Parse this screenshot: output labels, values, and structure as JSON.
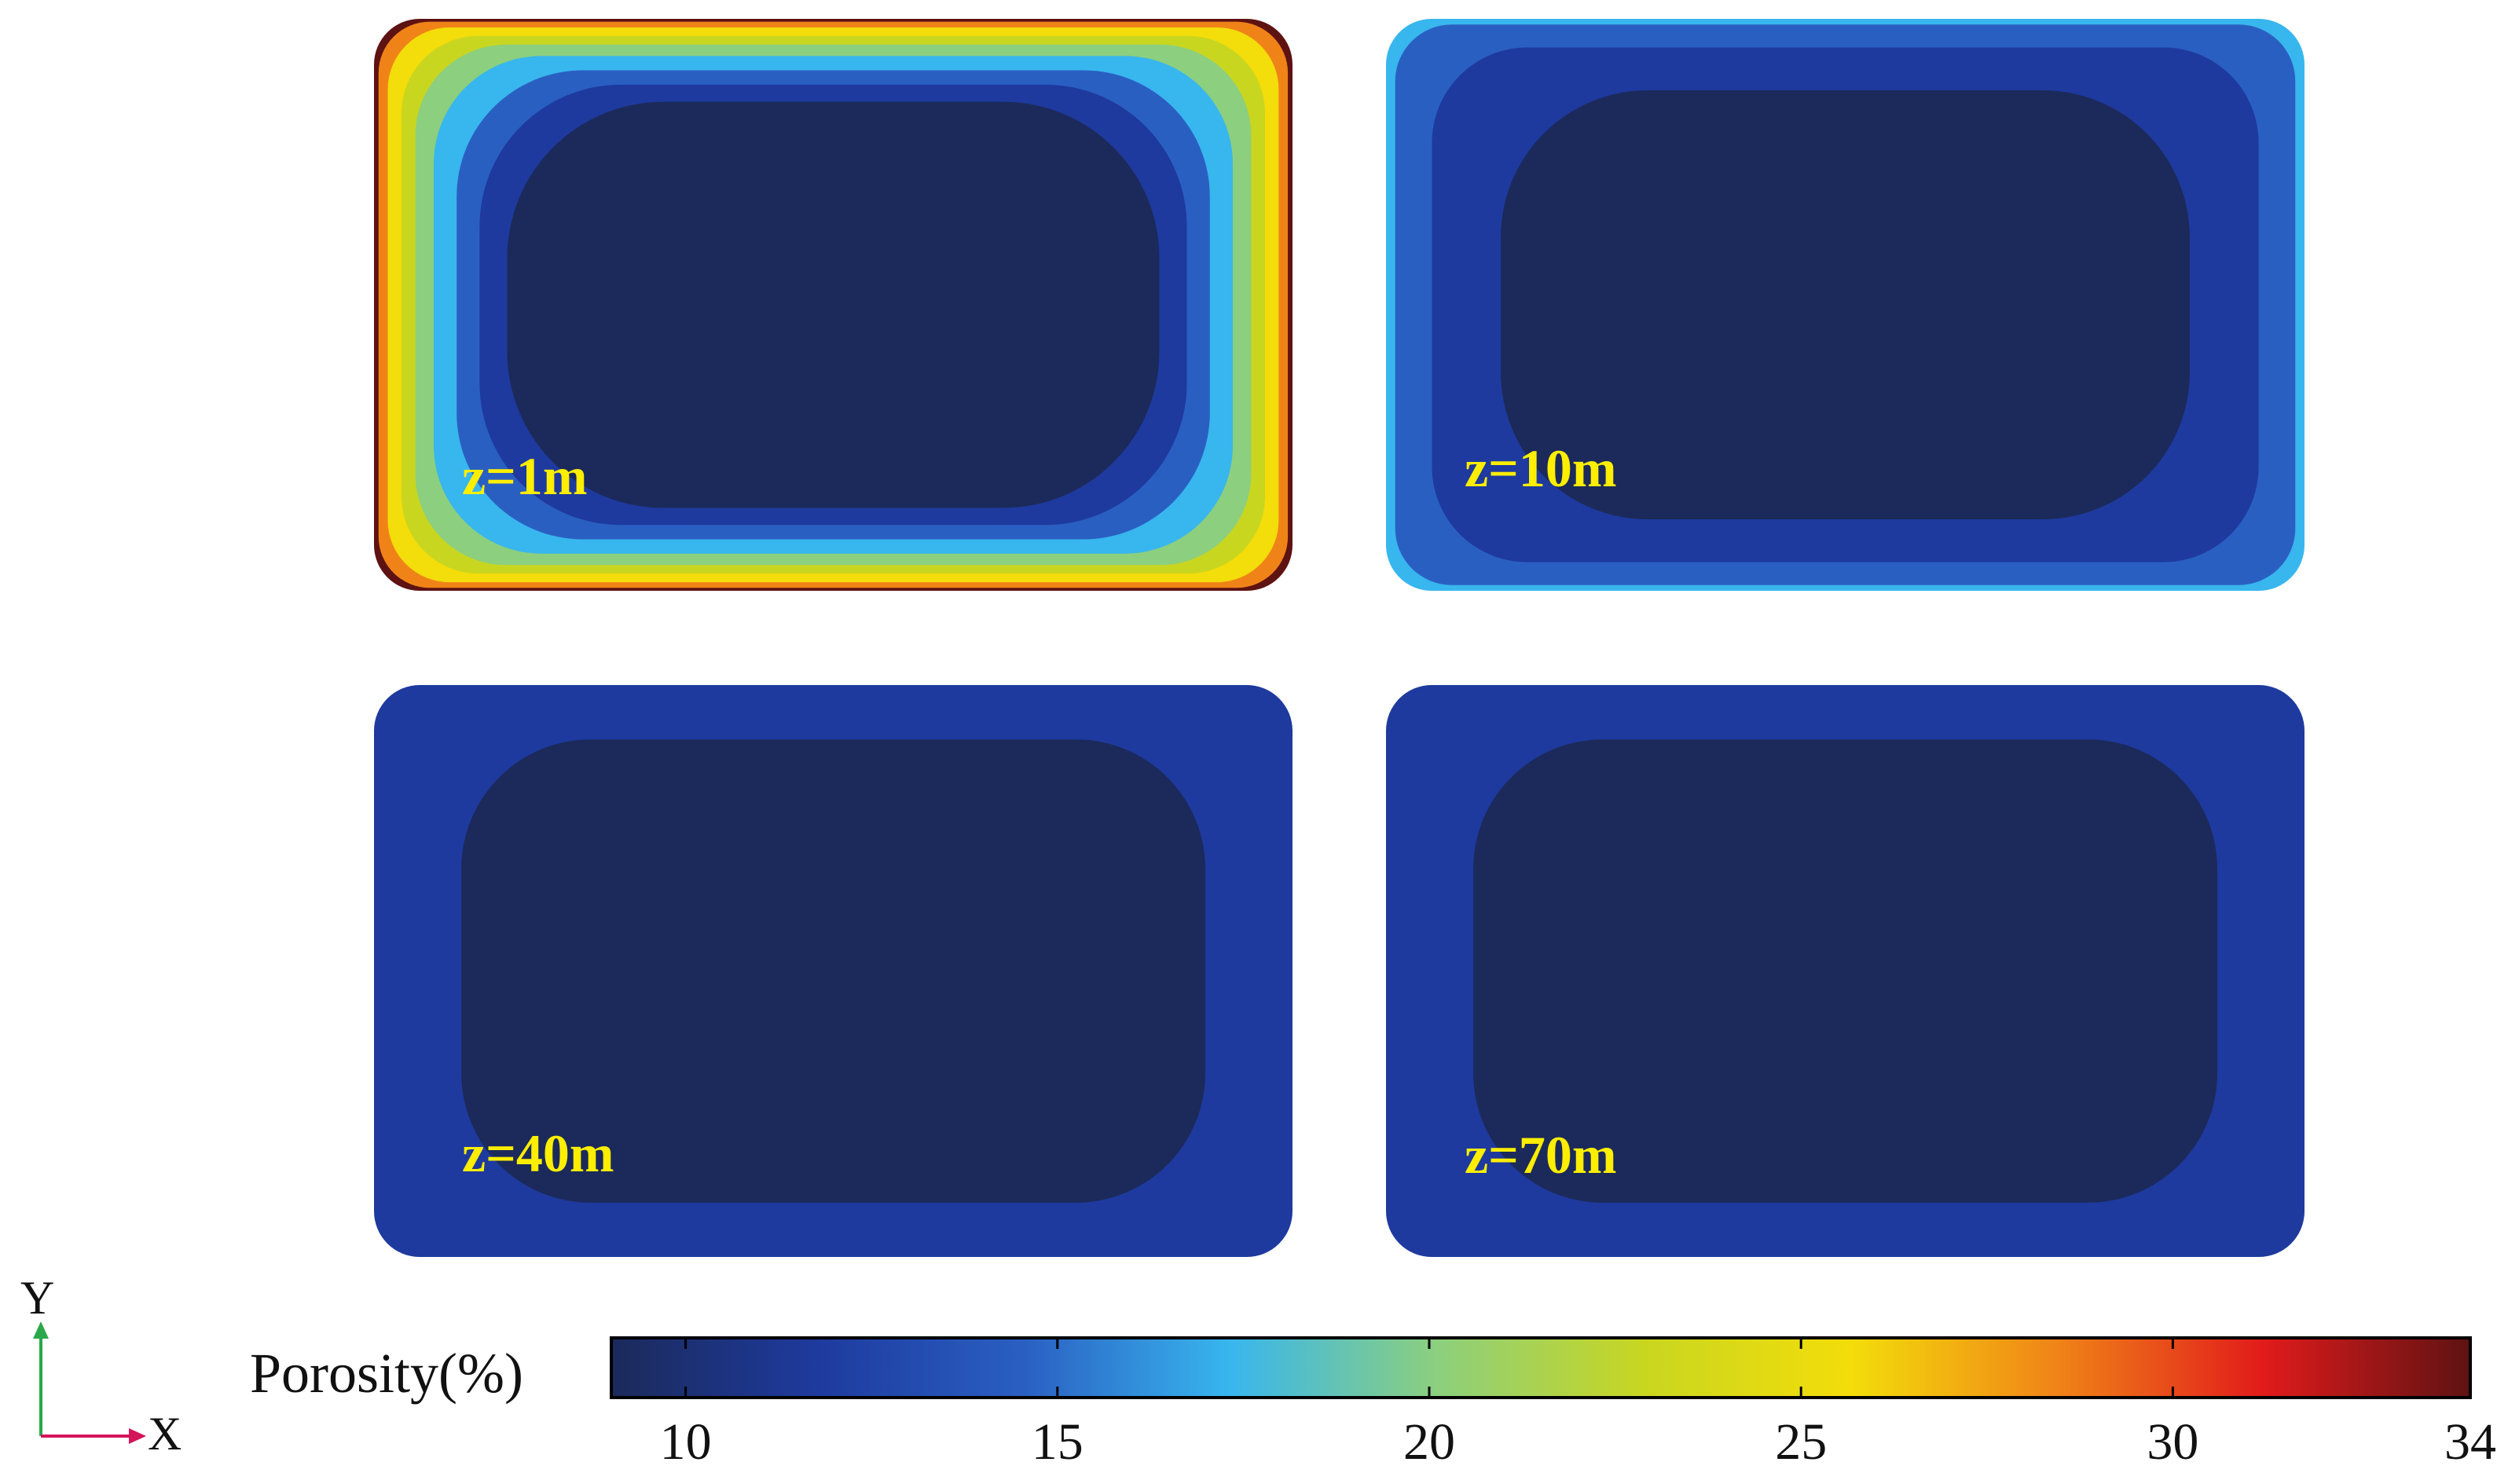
{
  "chart_data": {
    "type": "heatmap",
    "panels": [
      {
        "label": "z=1m",
        "center_value": 9.3,
        "edge_value": 33.0
      },
      {
        "label": "z=10m",
        "center_value": 9.4,
        "edge_value": 17.5
      },
      {
        "label": "z=40m",
        "center_value": 9.5,
        "edge_value": 13.0
      },
      {
        "label": "z=70m",
        "center_value": 9.5,
        "edge_value": 13.0
      }
    ],
    "colorbar": {
      "title": "Porosity(%)",
      "min": 9,
      "max": 34,
      "ticks": [
        10,
        15,
        20,
        25,
        30,
        34
      ],
      "tick_labels": [
        "10",
        "15",
        "20",
        "25",
        "30",
        "34"
      ],
      "colormap": [
        "#1b2a5a",
        "#1e3a9e",
        "#2a5fc2",
        "#38b6ee",
        "#8ccf7e",
        "#c9d620",
        "#f3dd0a",
        "#f08318",
        "#e11b1b",
        "#5e1212"
      ]
    },
    "axes_indicator": {
      "x": "X",
      "y": "Y",
      "x_color": "#d4145a",
      "y_color": "#2aa84a"
    }
  }
}
